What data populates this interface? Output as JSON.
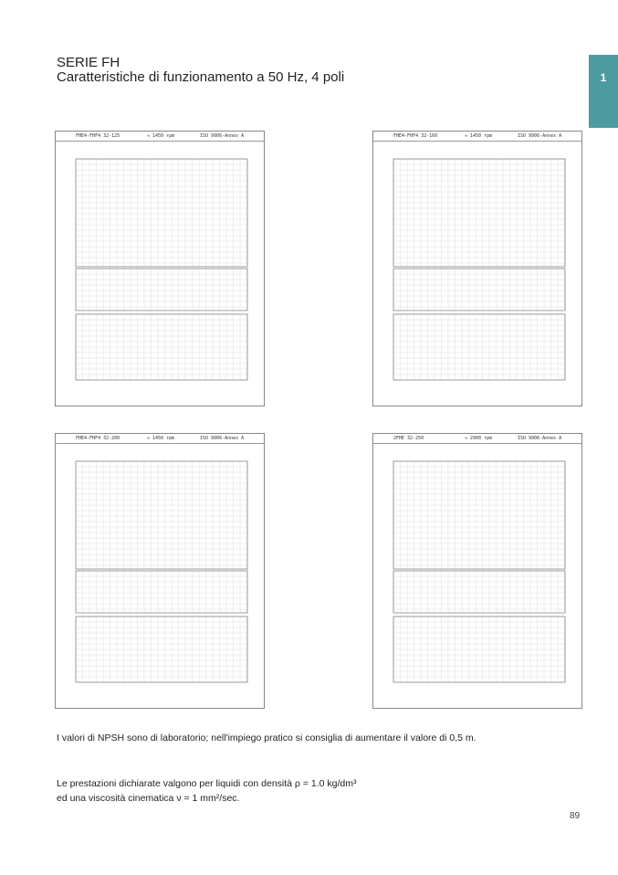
{
  "header": {
    "series": "SERIE FH",
    "subtitle": "Caratteristiche di funzionamento a 50 Hz, 4 poli",
    "tab_number": "1"
  },
  "charts": [
    {
      "model": "FHE4-FHF4 32-125",
      "speed": "≈ 1450 rpm",
      "norm": "ISO 9906-Annex A"
    },
    {
      "model": "FHE4-FHF4 32-160",
      "speed": "≈ 1450 rpm",
      "norm": "ISO 9906-Annex A"
    },
    {
      "model": "FHE4-FHF4 32-200",
      "speed": "≈ 1450 rpm",
      "norm": "ISO 9906-Annex A"
    },
    {
      "model": "2FHE 32-250",
      "speed": "≈ 2900 rpm",
      "norm": "ISO 9906-Annex A"
    }
  ],
  "notes": {
    "npsh": "I valori di NPSH sono di laboratorio; nell'impiego pratico si consiglia di aumentare il valore di 0,5 m.",
    "density": "Le prestazioni dichiarate valgono per liquidi con densità ρ = 1.0 kg/dm³",
    "viscosity": "ed una viscosità cinematica ν = 1 mm²/sec."
  },
  "page_number": "89"
}
